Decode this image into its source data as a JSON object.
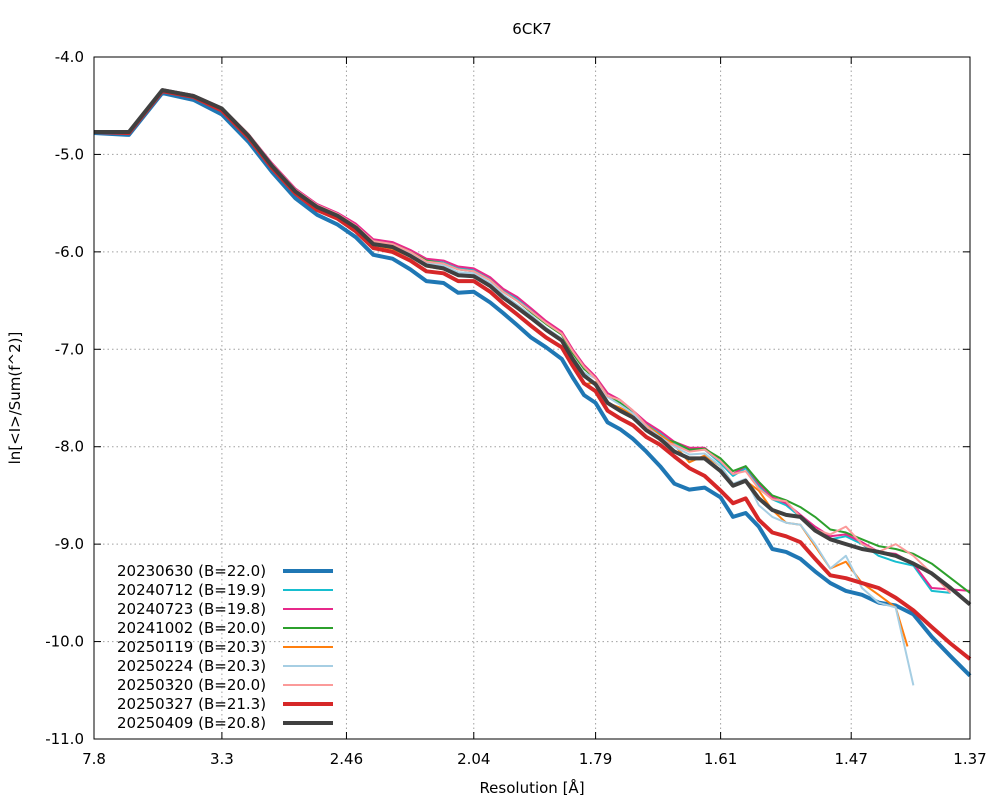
{
  "chart_data": {
    "type": "line",
    "title": "6CK7",
    "xlabel": "Resolution [Å]",
    "ylabel": "ln[<I>/Sum(f^2)]",
    "x_scale": "inverse-square resolution (1/d^2)",
    "xlim": [
      7.8,
      1.37
    ],
    "ylim": [
      -11.0,
      -4.0
    ],
    "x_tick_labels": [
      "7.8",
      "3.3",
      "2.46",
      "2.04",
      "1.79",
      "1.61",
      "1.47",
      "1.37"
    ],
    "y_tick_labels": [
      "-4.0",
      "-5.0",
      "-6.0",
      "-7.0",
      "-8.0",
      "-9.0",
      "-10.0",
      "-11.0"
    ],
    "grid": true,
    "legend_position": "bottom-left",
    "series": [
      {
        "name": "20230630 (B=22.0)",
        "color": "#1f77b4",
        "width": 4,
        "x": [
          7.8,
          5.2,
          4.2,
          3.65,
          3.3,
          3.05,
          2.87,
          2.72,
          2.6,
          2.5,
          2.42,
          2.35,
          2.28,
          2.22,
          2.17,
          2.12,
          2.08,
          2.04,
          2.0,
          1.97,
          1.94,
          1.91,
          1.88,
          1.85,
          1.83,
          1.81,
          1.79,
          1.77,
          1.75,
          1.73,
          1.71,
          1.69,
          1.67,
          1.65,
          1.63,
          1.61,
          1.595,
          1.58,
          1.565,
          1.55,
          1.535,
          1.52,
          1.505,
          1.49,
          1.475,
          1.46,
          1.445,
          1.43,
          1.415,
          1.4,
          1.385,
          1.37
        ],
        "y": [
          -4.78,
          -4.8,
          -4.37,
          -4.44,
          -4.59,
          -4.87,
          -5.18,
          -5.45,
          -5.62,
          -5.72,
          -5.85,
          -6.03,
          -6.07,
          -6.18,
          -6.3,
          -6.32,
          -6.42,
          -6.41,
          -6.52,
          -6.63,
          -6.75,
          -6.88,
          -6.98,
          -7.1,
          -7.29,
          -7.47,
          -7.55,
          -7.75,
          -7.82,
          -7.92,
          -8.05,
          -8.2,
          -8.38,
          -8.44,
          -8.42,
          -8.52,
          -8.72,
          -8.68,
          -8.82,
          -9.05,
          -9.08,
          -9.15,
          -9.28,
          -9.4,
          -9.48,
          -9.52,
          -9.6,
          -9.63,
          -9.72,
          -9.95,
          -10.15,
          -10.35
        ]
      },
      {
        "name": "20240712 (B=19.9)",
        "color": "#17becf",
        "width": 2,
        "x": [
          7.8,
          5.2,
          4.2,
          3.65,
          3.3,
          3.05,
          2.87,
          2.72,
          2.6,
          2.5,
          2.42,
          2.35,
          2.28,
          2.22,
          2.17,
          2.12,
          2.08,
          2.04,
          2.0,
          1.97,
          1.94,
          1.91,
          1.88,
          1.85,
          1.83,
          1.81,
          1.79,
          1.77,
          1.75,
          1.73,
          1.71,
          1.69,
          1.67,
          1.65,
          1.63,
          1.61,
          1.595,
          1.58,
          1.565,
          1.55,
          1.535,
          1.52,
          1.505,
          1.49,
          1.475,
          1.46,
          1.445,
          1.43,
          1.415,
          1.4,
          1.385
        ],
        "y": [
          -4.77,
          -4.77,
          -4.33,
          -4.39,
          -4.53,
          -4.8,
          -5.1,
          -5.36,
          -5.52,
          -5.61,
          -5.72,
          -5.88,
          -5.91,
          -5.99,
          -6.08,
          -6.11,
          -6.17,
          -6.18,
          -6.27,
          -6.39,
          -6.48,
          -6.6,
          -6.73,
          -6.84,
          -7.03,
          -7.19,
          -7.3,
          -7.48,
          -7.55,
          -7.65,
          -7.77,
          -7.86,
          -7.97,
          -8.03,
          -8.03,
          -8.17,
          -8.3,
          -8.22,
          -8.4,
          -8.54,
          -8.6,
          -8.72,
          -8.85,
          -8.95,
          -8.92,
          -9.0,
          -9.12,
          -9.18,
          -9.22,
          -9.48,
          -9.5
        ]
      },
      {
        "name": "20240723 (B=19.8)",
        "color": "#e7298a",
        "width": 2,
        "x": [
          7.8,
          5.2,
          4.2,
          3.65,
          3.3,
          3.05,
          2.87,
          2.72,
          2.6,
          2.5,
          2.42,
          2.35,
          2.28,
          2.22,
          2.17,
          2.12,
          2.08,
          2.04,
          2.0,
          1.97,
          1.94,
          1.91,
          1.88,
          1.85,
          1.83,
          1.81,
          1.79,
          1.77,
          1.75,
          1.73,
          1.71,
          1.69,
          1.67,
          1.65,
          1.63,
          1.61,
          1.595,
          1.58,
          1.565,
          1.55,
          1.535,
          1.52,
          1.505,
          1.49,
          1.475,
          1.46,
          1.445,
          1.43,
          1.415,
          1.4,
          1.37
        ],
        "y": [
          -4.77,
          -4.77,
          -4.33,
          -4.39,
          -4.52,
          -4.79,
          -5.09,
          -5.35,
          -5.51,
          -5.6,
          -5.71,
          -5.87,
          -5.9,
          -5.98,
          -6.07,
          -6.09,
          -6.15,
          -6.17,
          -6.26,
          -6.38,
          -6.46,
          -6.58,
          -6.71,
          -6.82,
          -7.0,
          -7.16,
          -7.28,
          -7.45,
          -7.52,
          -7.63,
          -7.75,
          -7.84,
          -7.95,
          -8.01,
          -8.01,
          -8.15,
          -8.28,
          -8.2,
          -8.38,
          -8.52,
          -8.58,
          -8.7,
          -8.82,
          -8.92,
          -8.9,
          -8.98,
          -9.08,
          -9.1,
          -9.2,
          -9.45,
          -9.48
        ]
      },
      {
        "name": "20241002 (B=20.0)",
        "color": "#2ca02c",
        "width": 2,
        "x": [
          7.8,
          5.2,
          4.2,
          3.65,
          3.3,
          3.05,
          2.87,
          2.72,
          2.6,
          2.5,
          2.42,
          2.35,
          2.28,
          2.22,
          2.17,
          2.12,
          2.08,
          2.04,
          2.0,
          1.97,
          1.94,
          1.91,
          1.88,
          1.85,
          1.83,
          1.81,
          1.79,
          1.77,
          1.75,
          1.73,
          1.71,
          1.69,
          1.67,
          1.65,
          1.63,
          1.61,
          1.595,
          1.58,
          1.565,
          1.55,
          1.535,
          1.52,
          1.505,
          1.49,
          1.475,
          1.46,
          1.445,
          1.43,
          1.415,
          1.4,
          1.37
        ],
        "y": [
          -4.77,
          -4.77,
          -4.33,
          -4.4,
          -4.53,
          -4.8,
          -5.11,
          -5.37,
          -5.53,
          -5.62,
          -5.74,
          -5.9,
          -5.92,
          -6.0,
          -6.09,
          -6.12,
          -6.18,
          -6.2,
          -6.29,
          -6.41,
          -6.5,
          -6.62,
          -6.74,
          -6.85,
          -7.04,
          -7.2,
          -7.3,
          -7.48,
          -7.55,
          -7.66,
          -7.78,
          -7.92,
          -7.95,
          -8.03,
          -8.02,
          -8.12,
          -8.25,
          -8.2,
          -8.36,
          -8.5,
          -8.55,
          -8.62,
          -8.72,
          -8.85,
          -8.88,
          -8.95,
          -9.02,
          -9.05,
          -9.1,
          -9.2,
          -9.5
        ]
      },
      {
        "name": "20250119 (B=20.3)",
        "color": "#ff7f0e",
        "width": 2,
        "x": [
          7.8,
          5.2,
          4.2,
          3.65,
          3.3,
          3.05,
          2.87,
          2.72,
          2.6,
          2.5,
          2.42,
          2.35,
          2.28,
          2.22,
          2.17,
          2.12,
          2.08,
          2.04,
          2.0,
          1.97,
          1.94,
          1.91,
          1.88,
          1.85,
          1.83,
          1.81,
          1.79,
          1.77,
          1.75,
          1.73,
          1.71,
          1.69,
          1.67,
          1.65,
          1.63,
          1.61,
          1.595,
          1.58,
          1.565,
          1.55,
          1.535,
          1.52,
          1.505,
          1.49,
          1.475,
          1.46,
          1.445,
          1.43,
          1.42
        ],
        "y": [
          -4.77,
          -4.77,
          -4.34,
          -4.4,
          -4.54,
          -4.82,
          -5.13,
          -5.39,
          -5.55,
          -5.64,
          -5.77,
          -5.93,
          -5.97,
          -6.05,
          -6.15,
          -6.18,
          -6.24,
          -6.25,
          -6.35,
          -6.46,
          -6.56,
          -6.67,
          -6.8,
          -6.92,
          -7.12,
          -7.36,
          -7.34,
          -7.55,
          -7.6,
          -7.67,
          -7.78,
          -7.88,
          -7.98,
          -8.16,
          -8.09,
          -8.2,
          -8.38,
          -8.35,
          -8.45,
          -8.65,
          -8.78,
          -8.8,
          -9.02,
          -9.25,
          -9.18,
          -9.4,
          -9.52,
          -9.65,
          -10.05
        ]
      },
      {
        "name": "20250224 (B=20.3)",
        "color": "#a6cee3",
        "width": 2,
        "x": [
          7.8,
          5.2,
          4.2,
          3.65,
          3.3,
          3.05,
          2.87,
          2.72,
          2.6,
          2.5,
          2.42,
          2.35,
          2.28,
          2.22,
          2.17,
          2.12,
          2.08,
          2.04,
          2.0,
          1.97,
          1.94,
          1.91,
          1.88,
          1.85,
          1.83,
          1.81,
          1.79,
          1.77,
          1.75,
          1.73,
          1.71,
          1.69,
          1.67,
          1.65,
          1.63,
          1.61,
          1.595,
          1.58,
          1.565,
          1.55,
          1.535,
          1.52,
          1.505,
          1.49,
          1.475,
          1.46,
          1.445,
          1.43,
          1.415
        ],
        "y": [
          -4.77,
          -4.77,
          -4.33,
          -4.4,
          -4.53,
          -4.8,
          -5.11,
          -5.37,
          -5.53,
          -5.62,
          -5.74,
          -5.9,
          -5.93,
          -6.01,
          -6.11,
          -6.14,
          -6.21,
          -6.22,
          -6.32,
          -6.44,
          -6.54,
          -6.65,
          -6.78,
          -6.89,
          -7.08,
          -7.24,
          -7.3,
          -7.49,
          -7.57,
          -7.66,
          -7.79,
          -7.9,
          -8.0,
          -8.08,
          -8.07,
          -8.2,
          -8.38,
          -8.33,
          -8.6,
          -8.72,
          -8.78,
          -8.8,
          -9.0,
          -9.25,
          -9.12,
          -9.45,
          -9.6,
          -9.65,
          -10.45
        ]
      },
      {
        "name": "20250320 (B=20.0)",
        "color": "#fb9a99",
        "width": 2,
        "x": [
          7.8,
          5.2,
          4.2,
          3.65,
          3.3,
          3.05,
          2.87,
          2.72,
          2.6,
          2.5,
          2.42,
          2.35,
          2.28,
          2.22,
          2.17,
          2.12,
          2.08,
          2.04,
          2.0,
          1.97,
          1.94,
          1.91,
          1.88,
          1.85,
          1.83,
          1.81,
          1.79,
          1.77,
          1.75,
          1.73,
          1.71,
          1.69,
          1.67,
          1.65,
          1.63,
          1.61,
          1.595,
          1.58,
          1.565,
          1.55,
          1.535,
          1.52,
          1.505,
          1.49,
          1.475,
          1.46,
          1.445,
          1.43,
          1.415,
          1.4,
          1.385
        ],
        "y": [
          -4.77,
          -4.77,
          -4.33,
          -4.39,
          -4.52,
          -4.79,
          -5.1,
          -5.36,
          -5.52,
          -5.61,
          -5.73,
          -5.89,
          -5.92,
          -6.0,
          -6.1,
          -6.12,
          -6.18,
          -6.2,
          -6.29,
          -6.41,
          -6.5,
          -6.61,
          -6.73,
          -6.84,
          -7.02,
          -7.18,
          -7.3,
          -7.48,
          -7.52,
          -7.63,
          -7.78,
          -7.94,
          -7.98,
          -8.05,
          -8.03,
          -8.15,
          -8.28,
          -8.25,
          -8.43,
          -8.54,
          -8.56,
          -8.72,
          -8.85,
          -8.9,
          -8.82,
          -9.0,
          -9.08,
          -9.0,
          -9.12,
          -9.3,
          -9.5
        ]
      },
      {
        "name": "20250327 (B=21.3)",
        "color": "#d62728",
        "width": 4,
        "x": [
          7.8,
          5.2,
          4.2,
          3.65,
          3.3,
          3.05,
          2.87,
          2.72,
          2.6,
          2.5,
          2.42,
          2.35,
          2.28,
          2.22,
          2.17,
          2.12,
          2.08,
          2.04,
          2.0,
          1.97,
          1.94,
          1.91,
          1.88,
          1.85,
          1.83,
          1.81,
          1.79,
          1.77,
          1.75,
          1.73,
          1.71,
          1.69,
          1.67,
          1.65,
          1.63,
          1.61,
          1.595,
          1.58,
          1.565,
          1.55,
          1.535,
          1.52,
          1.505,
          1.49,
          1.475,
          1.46,
          1.445,
          1.43,
          1.415,
          1.4,
          1.385,
          1.37
        ],
        "y": [
          -4.77,
          -4.78,
          -4.35,
          -4.41,
          -4.55,
          -4.83,
          -5.14,
          -5.4,
          -5.57,
          -5.66,
          -5.79,
          -5.96,
          -6.0,
          -6.09,
          -6.2,
          -6.22,
          -6.3,
          -6.3,
          -6.41,
          -6.53,
          -6.64,
          -6.76,
          -6.88,
          -6.98,
          -7.17,
          -7.35,
          -7.43,
          -7.63,
          -7.71,
          -7.78,
          -7.9,
          -7.98,
          -8.1,
          -8.22,
          -8.3,
          -8.45,
          -8.58,
          -8.53,
          -8.75,
          -8.88,
          -8.92,
          -8.98,
          -9.15,
          -9.32,
          -9.35,
          -9.4,
          -9.45,
          -9.55,
          -9.68,
          -9.85,
          -10.02,
          -10.18
        ]
      },
      {
        "name": "20250409 (B=20.8)",
        "color": "#404040",
        "width": 4,
        "x": [
          7.8,
          5.2,
          4.2,
          3.65,
          3.3,
          3.05,
          2.87,
          2.72,
          2.6,
          2.5,
          2.42,
          2.35,
          2.28,
          2.22,
          2.17,
          2.12,
          2.08,
          2.04,
          2.0,
          1.97,
          1.94,
          1.91,
          1.88,
          1.85,
          1.83,
          1.81,
          1.79,
          1.77,
          1.75,
          1.73,
          1.71,
          1.69,
          1.67,
          1.65,
          1.63,
          1.61,
          1.595,
          1.58,
          1.565,
          1.55,
          1.535,
          1.52,
          1.505,
          1.49,
          1.475,
          1.46,
          1.445,
          1.43,
          1.415,
          1.4,
          1.385,
          1.37
        ],
        "y": [
          -4.77,
          -4.77,
          -4.34,
          -4.4,
          -4.53,
          -4.81,
          -5.12,
          -5.38,
          -5.54,
          -5.63,
          -5.75,
          -5.92,
          -5.95,
          -6.04,
          -6.14,
          -6.17,
          -6.24,
          -6.25,
          -6.35,
          -6.47,
          -6.57,
          -6.68,
          -6.8,
          -6.91,
          -7.1,
          -7.27,
          -7.36,
          -7.55,
          -7.63,
          -7.7,
          -7.83,
          -7.92,
          -8.05,
          -8.12,
          -8.12,
          -8.25,
          -8.4,
          -8.35,
          -8.53,
          -8.65,
          -8.7,
          -8.72,
          -8.86,
          -8.95,
          -9.0,
          -9.05,
          -9.08,
          -9.12,
          -9.2,
          -9.3,
          -9.45,
          -9.62
        ]
      }
    ]
  }
}
